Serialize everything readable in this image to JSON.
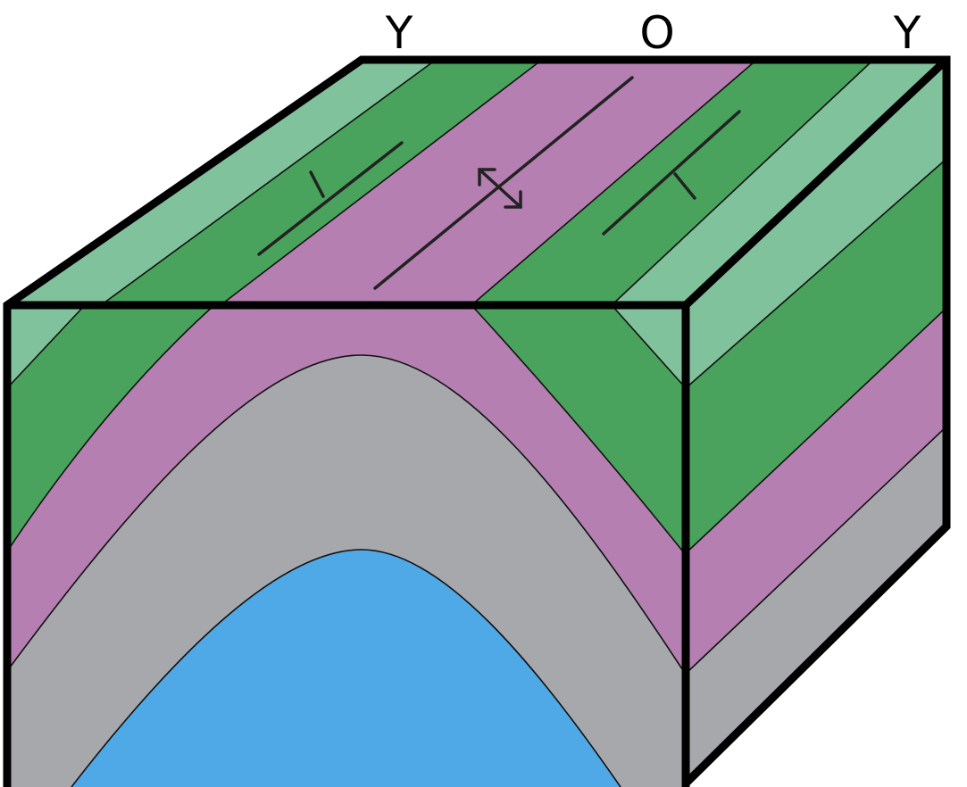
{
  "labels": {
    "left": "Y",
    "center": "O",
    "right": "Y"
  },
  "colors": {
    "light_green": "#80c29b",
    "green": "#4aa35c",
    "pink": "#b57fb2",
    "gray": "#a7a8ac",
    "blue": "#4ea9e6",
    "outline": "#000000"
  },
  "symbols": [
    "anticline-axis-icon",
    "strike-dip-icon",
    "strike-dip-icon"
  ]
}
